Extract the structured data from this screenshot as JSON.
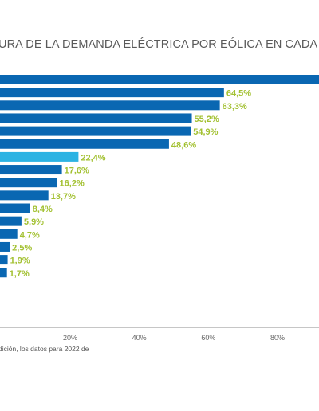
{
  "title": "URA DE LA DEMANDA ELÉCTRICA POR EÓLICA EN CADA",
  "footnote": "dición, los datos para 2022 de",
  "colors": {
    "bar": "#0a67b2",
    "highlight": "#2cb3e3",
    "label": "#a3c132",
    "axis": "#8c8c8c",
    "tick": "#666666"
  },
  "chart_data": {
    "type": "bar",
    "orientation": "horizontal",
    "title": "",
    "xlabel": "",
    "ylabel": "",
    "xlim": [
      -1,
      92
    ],
    "x_ticks": [
      20,
      40,
      60,
      80
    ],
    "x_tick_labels": [
      "20%",
      "40%",
      "60%",
      "80%"
    ],
    "grid": false,
    "legend": "none",
    "highlight_index": 6,
    "values": [
      94.0,
      64.5,
      63.3,
      55.2,
      54.9,
      48.6,
      22.4,
      17.6,
      16.2,
      13.7,
      8.4,
      5.9,
      4.7,
      2.5,
      1.9,
      1.7,
      0,
      0,
      0,
      0
    ],
    "value_labels": [
      "",
      "64,5%",
      "63,3%",
      "55,2%",
      "54,9%",
      "48,6%",
      "22,4%",
      "17,6%",
      "16,2%",
      "13,7%",
      "8,4%",
      "5,9%",
      "4,7%",
      "2,5%",
      "1,9%",
      "1,7%",
      "",
      "",
      "",
      ""
    ]
  }
}
